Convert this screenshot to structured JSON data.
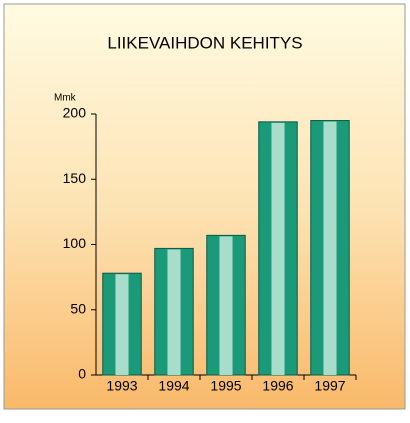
{
  "chart_data": {
    "type": "bar",
    "title": "LIIKEVAIHDON KEHITYS",
    "y_label": "Mmk",
    "categories": [
      "1993",
      "1994",
      "1995",
      "1996",
      "1997"
    ],
    "values": [
      78,
      97,
      107,
      194,
      195
    ],
    "color": "#1a9a78",
    "ylim": [
      0,
      200
    ],
    "yticks": [
      0,
      50,
      100,
      150,
      200
    ]
  }
}
